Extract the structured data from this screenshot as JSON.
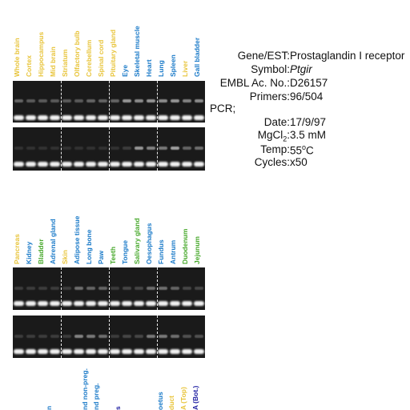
{
  "panels": [
    {
      "lanes": [
        {
          "label": "Whole brain",
          "color": "#e8c43a"
        },
        {
          "label": "Cortex",
          "color": "#e8c43a"
        },
        {
          "label": "Hippocampus",
          "color": "#e8c43a"
        },
        {
          "label": "Mid brain",
          "color": "#e8c43a"
        },
        {
          "label": "Striatum",
          "color": "#e8c43a"
        },
        {
          "label": "Olfactory bulb",
          "color": "#e8c43a"
        },
        {
          "label": "Cerebellum",
          "color": "#e8c43a"
        },
        {
          "label": "Spinal cord",
          "color": "#e8c43a"
        },
        {
          "label": "Pituitary gland",
          "color": "#e8c43a"
        },
        {
          "label": "Eye",
          "color": "#1a7ac8"
        },
        {
          "label": "Skeletal muscle",
          "color": "#1a7ac8"
        },
        {
          "label": "Heart",
          "color": "#1a7ac8"
        },
        {
          "label": "Lung",
          "color": "#1a7ac8"
        },
        {
          "label": "Spleen",
          "color": "#1a7ac8"
        },
        {
          "label": "Liver",
          "color": "#e8c43a"
        },
        {
          "label": "Gall bladder",
          "color": "#1a7ac8"
        }
      ],
      "band_intensity_top": [
        0.3,
        0.25,
        0.25,
        0.25,
        0.25,
        0.25,
        0.3,
        0.3,
        0.3,
        0.55,
        0.5,
        0.55,
        0.5,
        0.55,
        0.45,
        0.5
      ],
      "band_intensity_bottom": [
        0.05,
        0.05,
        0.05,
        0.05,
        0.05,
        0.05,
        0.05,
        0.05,
        0.05,
        0.1,
        0.55,
        0.45,
        0.4,
        0.6,
        0.3,
        0.35
      ]
    },
    {
      "lanes": [
        {
          "label": "Pancreas",
          "color": "#e8c43a"
        },
        {
          "label": "Kidney",
          "color": "#1a7ac8"
        },
        {
          "label": "Bladder",
          "color": "#46a82a"
        },
        {
          "label": "Adrenal gland",
          "color": "#1a7ac8"
        },
        {
          "label": "Skin",
          "color": "#e8c43a"
        },
        {
          "label": "Adipose tissue",
          "color": "#1a7ac8"
        },
        {
          "label": "Long bone",
          "color": "#1a7ac8"
        },
        {
          "label": "Paw",
          "color": "#1a7ac8"
        },
        {
          "label": "Teeth",
          "color": "#46a82a"
        },
        {
          "label": "Tongue",
          "color": "#1a7ac8"
        },
        {
          "label": "Salivary gland",
          "color": "#46a82a"
        },
        {
          "label": "Oesophagus",
          "color": "#1a7ac8"
        },
        {
          "label": "Fundus",
          "color": "#1a7ac8"
        },
        {
          "label": "Antrum",
          "color": "#1a7ac8"
        },
        {
          "label": "Duodenum",
          "color": "#46a82a"
        },
        {
          "label": "Jejunum",
          "color": "#46a82a"
        }
      ],
      "band_intensity_top": [
        0.1,
        0.1,
        0.1,
        0.1,
        0.1,
        0.35,
        0.3,
        0.3,
        0.1,
        0.15,
        0.15,
        0.35,
        0.35,
        0.3,
        0.15,
        0.15
      ],
      "band_intensity_bottom": [
        0.1,
        0.1,
        0.1,
        0.1,
        0.1,
        0.45,
        0.4,
        0.35,
        0.1,
        0.15,
        0.15,
        0.4,
        0.4,
        0.35,
        0.2,
        0.2
      ]
    }
  ],
  "bottom_labels": [
    {
      "label": "n",
      "color": "#1a7ac8"
    },
    {
      "label": "nd non-preg.",
      "color": "#1a7ac8"
    },
    {
      "label": "nd preg.",
      "color": "#1a7ac8"
    },
    {
      "label": "s",
      "color": "#1a1aa0"
    },
    {
      "label": "oetus",
      "color": "#1a7ac8"
    },
    {
      "label": "duct",
      "color": "#e8c43a"
    },
    {
      "label": "A (Top)",
      "color": "#e8c43a"
    },
    {
      "label": "A (Bot.)",
      "color": "#1a1aa0"
    }
  ],
  "info": {
    "gene_key": "Gene/EST:",
    "gene_val": "Prostaglandin I receptor",
    "symbol_key": "Symbol:",
    "symbol_val": "Ptgir",
    "embl_key": "EMBL Ac. No.:",
    "embl_val": "D26157",
    "primers_key": "Primers:",
    "primers_val": "96/504",
    "pcr_label": "PCR;",
    "date_key": "Date:",
    "date_val": "17/9/97",
    "mgcl_key": "MgCl",
    "mgcl_sub": "2",
    "mgcl_colon": ":",
    "mgcl_val": "3.5 mM",
    "temp_key": "Temp:",
    "temp_num": "55",
    "temp_sup": "o",
    "temp_unit": "C",
    "cycles_key": "Cycles:",
    "cycles_val": "x50"
  }
}
